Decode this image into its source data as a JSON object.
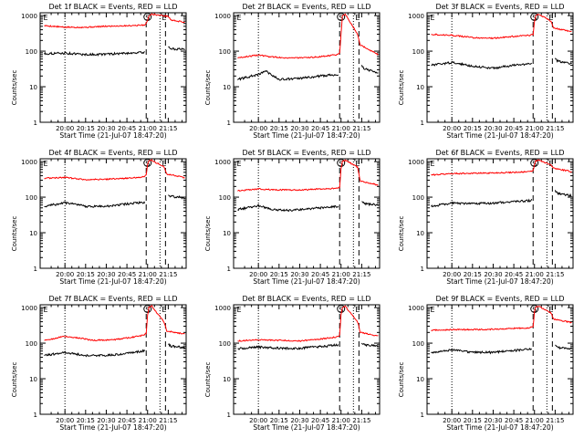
{
  "figure": {
    "xlabel": "Start Time (21-Jul-07 18:47:20)",
    "ylabel": "Counts/sec",
    "x_tick_labels": [
      "20:00",
      "20:15",
      "20:30",
      "20:45",
      "21:00",
      "21:15"
    ],
    "y_tick_labels": [
      "1",
      "10",
      "100",
      "1000"
    ],
    "markers": [
      "E",
      "S",
      "E"
    ]
  },
  "chart_data": [
    {
      "type": "line",
      "title": "Det 1f BLACK = Events, RED = LLD",
      "xlabel": "Start Time (21-Jul-07 18:47:20)",
      "ylabel": "Counts/sec",
      "y_scale": "log",
      "ylim": [
        1,
        1200
      ],
      "xlim": [
        "19:42",
        "21:28"
      ],
      "x_ticks": [
        "20:00",
        "20:15",
        "20:30",
        "20:45",
        "21:00",
        "21:15"
      ],
      "y_ticks": [
        1,
        10,
        100,
        1000
      ],
      "vlines": [
        {
          "x": "20:00",
          "style": "dotted"
        },
        {
          "x": "20:59",
          "style": "dashed"
        },
        {
          "x": "21:09",
          "style": "dotted"
        },
        {
          "x": "21:13",
          "style": "dashed"
        }
      ],
      "markers": [
        {
          "label": "E",
          "x": "19:43"
        },
        {
          "label": "S",
          "x": "21:00"
        },
        {
          "label": "E",
          "x": "21:12"
        }
      ],
      "series": [
        {
          "color": "#ff0000",
          "x": [
            "19:45",
            "20:00",
            "20:15",
            "20:30",
            "20:45",
            "20:57",
            "20:59",
            "21:00",
            "21:01",
            "21:03",
            "21:15",
            "21:17",
            "21:27"
          ],
          "y": [
            520,
            470,
            470,
            500,
            520,
            540,
            580,
            750,
            1000,
            1100,
            950,
            750,
            650
          ]
        },
        {
          "color": "#000000",
          "x": [
            "19:45",
            "20:00",
            "20:15",
            "20:30",
            "20:45",
            "20:57",
            "21:15",
            "21:17",
            "21:27"
          ],
          "y": [
            85,
            88,
            80,
            82,
            88,
            92,
            135,
            118,
            110
          ]
        }
      ]
    },
    {
      "type": "line",
      "title": "Det 2f BLACK = Events, RED = LLD",
      "xlabel": "Start Time (21-Jul-07 18:47:20)",
      "ylabel": "Counts/sec",
      "y_scale": "log",
      "ylim": [
        1,
        1200
      ],
      "xlim": [
        "19:42",
        "21:28"
      ],
      "x_ticks": [
        "20:00",
        "20:15",
        "20:30",
        "20:45",
        "21:00",
        "21:15"
      ],
      "y_ticks": [
        1,
        10,
        100,
        1000
      ],
      "vlines": [
        {
          "x": "20:00",
          "style": "dotted"
        },
        {
          "x": "20:59",
          "style": "dashed"
        },
        {
          "x": "21:09",
          "style": "dotted"
        },
        {
          "x": "21:13",
          "style": "dashed"
        }
      ],
      "markers": [
        {
          "label": "E",
          "x": "19:43"
        },
        {
          "label": "S",
          "x": "21:00"
        },
        {
          "label": "E",
          "x": "21:12"
        }
      ],
      "series": [
        {
          "color": "#ff0000",
          "x": [
            "19:45",
            "20:00",
            "20:08",
            "20:20",
            "20:35",
            "20:45",
            "20:57",
            "20:59",
            "21:00",
            "21:01",
            "21:03",
            "21:12",
            "21:14",
            "21:27"
          ],
          "y": [
            65,
            78,
            70,
            65,
            65,
            70,
            80,
            90,
            300,
            1000,
            1100,
            300,
            150,
            80
          ]
        },
        {
          "color": "#000000",
          "x": [
            "19:45",
            "20:00",
            "20:05",
            "20:15",
            "20:30",
            "20:45",
            "20:57",
            "21:15",
            "21:17",
            "21:27"
          ],
          "y": [
            16,
            22,
            28,
            16,
            17,
            20,
            22,
            40,
            32,
            25
          ]
        }
      ]
    },
    {
      "type": "line",
      "title": "Det 3f BLACK = Events, RED = LLD",
      "xlabel": "Start Time (21-Jul-07 18:47:20)",
      "ylabel": "Counts/sec",
      "y_scale": "log",
      "ylim": [
        1,
        1200
      ],
      "xlim": [
        "19:42",
        "21:28"
      ],
      "x_ticks": [
        "20:00",
        "20:15",
        "20:30",
        "20:45",
        "21:00",
        "21:15"
      ],
      "y_ticks": [
        1,
        10,
        100,
        1000
      ],
      "vlines": [
        {
          "x": "20:00",
          "style": "dotted"
        },
        {
          "x": "20:59",
          "style": "dashed"
        },
        {
          "x": "21:09",
          "style": "dotted"
        },
        {
          "x": "21:13",
          "style": "dashed"
        }
      ],
      "markers": [
        {
          "label": "E",
          "x": "19:43"
        },
        {
          "label": "S",
          "x": "21:00"
        },
        {
          "label": "E",
          "x": "21:12"
        }
      ],
      "series": [
        {
          "color": "#ff0000",
          "x": [
            "19:45",
            "20:00",
            "20:15",
            "20:30",
            "20:45",
            "20:57",
            "20:59",
            "21:00",
            "21:01",
            "21:03",
            "21:12",
            "21:14",
            "21:27"
          ],
          "y": [
            300,
            280,
            240,
            230,
            260,
            280,
            300,
            700,
            1000,
            1100,
            700,
            450,
            350
          ]
        },
        {
          "color": "#000000",
          "x": [
            "19:45",
            "20:00",
            "20:15",
            "20:30",
            "20:45",
            "20:57",
            "21:15",
            "21:17",
            "21:27"
          ],
          "y": [
            40,
            48,
            38,
            33,
            40,
            45,
            60,
            52,
            45
          ]
        }
      ]
    },
    {
      "type": "line",
      "title": "Det 4f BLACK = Events, RED = LLD",
      "xlabel": "Start Time (21-Jul-07 18:47:20)",
      "ylabel": "Counts/sec",
      "y_scale": "log",
      "ylim": [
        1,
        1200
      ],
      "xlim": [
        "19:42",
        "21:28"
      ],
      "x_ticks": [
        "20:00",
        "20:15",
        "20:30",
        "20:45",
        "21:00",
        "21:15"
      ],
      "y_ticks": [
        1,
        10,
        100,
        1000
      ],
      "vlines": [
        {
          "x": "20:00",
          "style": "dotted"
        },
        {
          "x": "20:59",
          "style": "dashed"
        },
        {
          "x": "21:09",
          "style": "dotted"
        },
        {
          "x": "21:13",
          "style": "dashed"
        }
      ],
      "markers": [
        {
          "label": "E",
          "x": "19:43"
        },
        {
          "label": "S",
          "x": "21:00"
        },
        {
          "label": "E",
          "x": "21:12"
        }
      ],
      "series": [
        {
          "color": "#ff0000",
          "x": [
            "19:45",
            "20:00",
            "20:15",
            "20:30",
            "20:45",
            "20:57",
            "20:59",
            "21:00",
            "21:01",
            "21:03",
            "21:12",
            "21:14",
            "21:27"
          ],
          "y": [
            340,
            360,
            310,
            320,
            340,
            370,
            420,
            800,
            1050,
            1100,
            700,
            450,
            350
          ]
        },
        {
          "color": "#000000",
          "x": [
            "19:45",
            "20:00",
            "20:15",
            "20:30",
            "20:45",
            "20:57",
            "21:15",
            "21:17",
            "21:27"
          ],
          "y": [
            55,
            70,
            55,
            55,
            65,
            70,
            120,
            105,
            95
          ]
        }
      ]
    },
    {
      "type": "line",
      "title": "Det 5f BLACK = Events, RED = LLD",
      "xlabel": "Start Time (21-Jul-07 18:47:20)",
      "ylabel": "Counts/sec",
      "y_scale": "log",
      "ylim": [
        1,
        1200
      ],
      "xlim": [
        "19:42",
        "21:28"
      ],
      "x_ticks": [
        "20:00",
        "20:15",
        "20:30",
        "20:45",
        "21:00",
        "21:15"
      ],
      "y_ticks": [
        1,
        10,
        100,
        1000
      ],
      "vlines": [
        {
          "x": "20:00",
          "style": "dotted"
        },
        {
          "x": "20:59",
          "style": "dashed"
        },
        {
          "x": "21:09",
          "style": "dotted"
        },
        {
          "x": "21:13",
          "style": "dashed"
        }
      ],
      "markers": [
        {
          "label": "E",
          "x": "19:43"
        },
        {
          "label": "S",
          "x": "21:00"
        },
        {
          "label": "E",
          "x": "21:12"
        }
      ],
      "series": [
        {
          "color": "#ff0000",
          "x": [
            "19:45",
            "20:00",
            "20:15",
            "20:30",
            "20:45",
            "20:57",
            "20:59",
            "21:00",
            "21:01",
            "21:03",
            "21:12",
            "21:14",
            "21:27"
          ],
          "y": [
            150,
            170,
            160,
            160,
            170,
            175,
            190,
            600,
            1000,
            1100,
            700,
            280,
            220
          ]
        },
        {
          "color": "#000000",
          "x": [
            "19:45",
            "20:00",
            "20:10",
            "20:20",
            "20:30",
            "20:45",
            "20:57",
            "21:15",
            "21:17",
            "21:27"
          ],
          "y": [
            45,
            58,
            45,
            42,
            45,
            50,
            55,
            75,
            65,
            60
          ]
        }
      ]
    },
    {
      "type": "line",
      "title": "Det 6f BLACK = Events, RED = LLD",
      "xlabel": "Start Time (21-Jul-07 18:47:20)",
      "ylabel": "Counts/sec",
      "y_scale": "log",
      "ylim": [
        1,
        1200
      ],
      "xlim": [
        "19:42",
        "21:28"
      ],
      "x_ticks": [
        "20:00",
        "20:15",
        "20:30",
        "20:45",
        "21:00",
        "21:15"
      ],
      "y_ticks": [
        1,
        10,
        100,
        1000
      ],
      "vlines": [
        {
          "x": "20:00",
          "style": "dotted"
        },
        {
          "x": "20:59",
          "style": "dashed"
        },
        {
          "x": "21:09",
          "style": "dotted"
        },
        {
          "x": "21:13",
          "style": "dashed"
        }
      ],
      "markers": [
        {
          "label": "E",
          "x": "19:43"
        },
        {
          "label": "S",
          "x": "21:00"
        },
        {
          "label": "E",
          "x": "21:12"
        }
      ],
      "series": [
        {
          "color": "#ff0000",
          "x": [
            "19:45",
            "20:00",
            "20:15",
            "20:30",
            "20:45",
            "20:57",
            "20:59",
            "21:00",
            "21:01",
            "21:03",
            "21:12",
            "21:14",
            "21:27"
          ],
          "y": [
            420,
            460,
            470,
            480,
            500,
            520,
            560,
            800,
            1050,
            1100,
            800,
            650,
            520
          ]
        },
        {
          "color": "#000000",
          "x": [
            "19:45",
            "20:00",
            "20:15",
            "20:30",
            "20:45",
            "20:57",
            "21:15",
            "21:17",
            "21:27"
          ],
          "y": [
            55,
            68,
            65,
            68,
            75,
            80,
            150,
            125,
            110
          ]
        }
      ]
    },
    {
      "type": "line",
      "title": "Det 7f BLACK = Events, RED = LLD",
      "xlabel": "Start Time (21-Jul-07 18:47:20)",
      "ylabel": "Counts/sec",
      "y_scale": "log",
      "ylim": [
        1,
        1200
      ],
      "xlim": [
        "19:42",
        "21:28"
      ],
      "x_ticks": [
        "20:00",
        "20:15",
        "20:30",
        "20:45",
        "21:00",
        "21:15"
      ],
      "y_ticks": [
        1,
        10,
        100,
        1000
      ],
      "vlines": [
        {
          "x": "20:00",
          "style": "dotted"
        },
        {
          "x": "20:59",
          "style": "dashed"
        },
        {
          "x": "21:09",
          "style": "dotted"
        },
        {
          "x": "21:13",
          "style": "dashed"
        }
      ],
      "markers": [
        {
          "label": "E",
          "x": "19:43"
        },
        {
          "label": "S",
          "x": "21:00"
        },
        {
          "label": "E",
          "x": "21:12"
        }
      ],
      "series": [
        {
          "color": "#ff0000",
          "x": [
            "19:45",
            "20:00",
            "20:10",
            "20:20",
            "20:35",
            "20:45",
            "20:57",
            "20:59",
            "21:00",
            "21:01",
            "21:03",
            "21:12",
            "21:14",
            "21:27"
          ],
          "y": [
            120,
            155,
            140,
            120,
            125,
            140,
            165,
            190,
            600,
            1000,
            1100,
            400,
            220,
            180
          ]
        },
        {
          "color": "#000000",
          "x": [
            "19:45",
            "20:00",
            "20:15",
            "20:30",
            "20:45",
            "20:57",
            "21:15",
            "21:17",
            "21:27"
          ],
          "y": [
            45,
            55,
            45,
            45,
            52,
            60,
            95,
            82,
            75
          ]
        }
      ]
    },
    {
      "type": "line",
      "title": "Det 8f BLACK = Events, RED = LLD",
      "xlabel": "Start Time (21-Jul-07 18:47:20)",
      "ylabel": "Counts/sec",
      "y_scale": "log",
      "ylim": [
        1,
        1200
      ],
      "xlim": [
        "19:42",
        "21:28"
      ],
      "x_ticks": [
        "20:00",
        "20:15",
        "20:30",
        "20:45",
        "21:00",
        "21:15"
      ],
      "y_ticks": [
        1,
        10,
        100,
        1000
      ],
      "vlines": [
        {
          "x": "20:00",
          "style": "dotted"
        },
        {
          "x": "20:59",
          "style": "dashed"
        },
        {
          "x": "21:09",
          "style": "dotted"
        },
        {
          "x": "21:13",
          "style": "dashed"
        }
      ],
      "markers": [
        {
          "label": "E",
          "x": "19:43"
        },
        {
          "label": "S",
          "x": "21:00"
        },
        {
          "label": "E",
          "x": "21:12"
        }
      ],
      "series": [
        {
          "color": "#ff0000",
          "x": [
            "19:45",
            "20:00",
            "20:15",
            "20:30",
            "20:45",
            "20:57",
            "20:59",
            "21:00",
            "21:01",
            "21:03",
            "21:12",
            "21:14",
            "21:27"
          ],
          "y": [
            115,
            125,
            120,
            115,
            130,
            150,
            170,
            600,
            1000,
            1100,
            400,
            200,
            160
          ]
        },
        {
          "color": "#000000",
          "x": [
            "19:45",
            "20:00",
            "20:15",
            "20:30",
            "20:45",
            "20:57",
            "21:15",
            "21:17",
            "21:27"
          ],
          "y": [
            70,
            78,
            72,
            72,
            80,
            88,
            100,
            90,
            85
          ]
        }
      ]
    },
    {
      "type": "line",
      "title": "Det 9f BLACK = Events, RED = LLD",
      "xlabel": "Start Time (21-Jul-07 18:47:20)",
      "ylabel": "Counts/sec",
      "y_scale": "log",
      "ylim": [
        1,
        1200
      ],
      "xlim": [
        "19:42",
        "21:28"
      ],
      "x_ticks": [
        "20:00",
        "20:15",
        "20:30",
        "20:45",
        "21:00",
        "21:15"
      ],
      "y_ticks": [
        1,
        10,
        100,
        1000
      ],
      "vlines": [
        {
          "x": "20:00",
          "style": "dotted"
        },
        {
          "x": "20:59",
          "style": "dashed"
        },
        {
          "x": "21:09",
          "style": "dotted"
        },
        {
          "x": "21:13",
          "style": "dashed"
        }
      ],
      "markers": [
        {
          "label": "E",
          "x": "19:43"
        },
        {
          "label": "S",
          "x": "21:00"
        },
        {
          "label": "E",
          "x": "21:12"
        }
      ],
      "series": [
        {
          "color": "#ff0000",
          "x": [
            "19:45",
            "20:00",
            "20:15",
            "20:30",
            "20:45",
            "20:57",
            "20:59",
            "21:00",
            "21:01",
            "21:03",
            "21:12",
            "21:14",
            "21:27"
          ],
          "y": [
            230,
            240,
            240,
            245,
            260,
            270,
            300,
            750,
            1050,
            1100,
            700,
            480,
            380
          ]
        },
        {
          "color": "#000000",
          "x": [
            "19:45",
            "20:00",
            "20:15",
            "20:30",
            "20:45",
            "20:57",
            "21:15",
            "21:17",
            "21:27"
          ],
          "y": [
            55,
            65,
            55,
            55,
            62,
            68,
            85,
            75,
            70
          ]
        }
      ]
    }
  ]
}
